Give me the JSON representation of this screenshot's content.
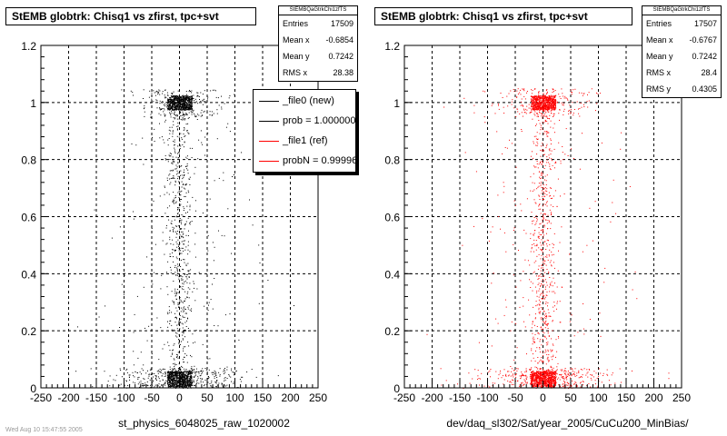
{
  "chart_data": [
    {
      "type": "scatter",
      "title": "StEMB globtrk: Chisq1 vs zfirst, tpc+svt",
      "xlabel": "st_physics_6048025_raw_1020002",
      "xlim": [
        -250,
        250
      ],
      "ylim": [
        0,
        1.2
      ],
      "x_ticks": [
        -250,
        -200,
        -150,
        -100,
        -50,
        0,
        50,
        100,
        150,
        200,
        250
      ],
      "y_ticks": [
        0,
        0.2,
        0.4,
        0.6,
        0.8,
        1,
        1.2
      ],
      "grid": true,
      "marker_color": "#000000",
      "stats": {
        "name": "StEMBQaGtrkChi1zfTS",
        "rows": [
          {
            "label": "Entries",
            "value": "17509"
          },
          {
            "label": "Mean x",
            "value": "-0.6854"
          },
          {
            "label": "Mean y",
            "value": "0.7242"
          },
          {
            "label": "RMS x",
            "value": "28.38"
          }
        ]
      },
      "legend": {
        "placement": "top-right",
        "entries": [
          {
            "label": "_file0 (new)",
            "color": "#000000"
          },
          {
            "label": "prob = 1.000000",
            "color": "#000000"
          },
          {
            "label": "_file1 (ref)",
            "color": "#ff0000"
          },
          {
            "label": "probN = 0.999966",
            "color": "#ff0000"
          }
        ]
      },
      "footnote": "Wed Aug 10 15:47:55 2005"
    },
    {
      "type": "scatter",
      "title": "StEMB globtrk: Chisq1 vs zfirst, tpc+svt",
      "xlabel": "dev/daq_sl302/Sat/year_2005/CuCu200_MinBias/",
      "xlim": [
        -250,
        250
      ],
      "ylim": [
        0,
        1.2
      ],
      "x_ticks": [
        -250,
        -200,
        -150,
        -100,
        -50,
        0,
        50,
        100,
        150,
        200,
        250
      ],
      "y_ticks": [
        0,
        0.2,
        0.4,
        0.6,
        0.8,
        1,
        1.2
      ],
      "grid": true,
      "marker_color": "#ff0000",
      "stats": {
        "name": "StEMBQaGtrkChi1zfTS",
        "rows": [
          {
            "label": "Entries",
            "value": "17507"
          },
          {
            "label": "Mean x",
            "value": "-0.6767"
          },
          {
            "label": "Mean y",
            "value": "0.7242"
          },
          {
            "label": "RMS x",
            "value": "28.4"
          },
          {
            "label": "RMS y",
            "value": "0.4305"
          }
        ]
      }
    }
  ]
}
